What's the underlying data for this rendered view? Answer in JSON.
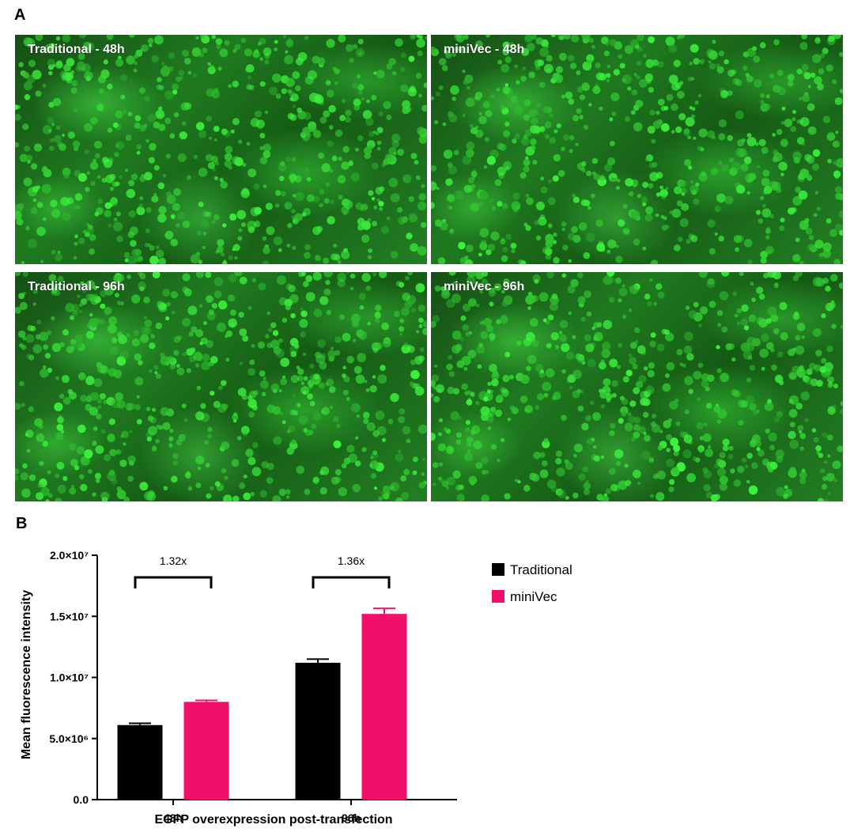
{
  "panels": {
    "a_label": "A",
    "b_label": "B"
  },
  "micrographs": [
    {
      "label": "Traditional - 48h"
    },
    {
      "label": "miniVec - 48h"
    },
    {
      "label": "Traditional - 96h"
    },
    {
      "label": "miniVec - 96h"
    }
  ],
  "colors": {
    "traditional": "#000000",
    "minivec": "#f0106a",
    "fluorescence": "#3ee23e"
  },
  "chart_data": {
    "type": "bar",
    "categories": [
      "48h",
      "96h"
    ],
    "series": [
      {
        "name": "Traditional",
        "values": [
          6100000,
          11200000
        ],
        "errors": [
          150000,
          300000
        ],
        "color": "#000000"
      },
      {
        "name": "miniVec",
        "values": [
          8000000,
          15200000
        ],
        "errors": [
          120000,
          450000
        ],
        "color": "#f0106a"
      }
    ],
    "ylim": [
      0,
      20000000
    ],
    "yticks": [
      {
        "value": 0,
        "label": "0.0"
      },
      {
        "value": 5000000,
        "label": "5.0×10⁶"
      },
      {
        "value": 10000000,
        "label": "1.0×10⁷"
      },
      {
        "value": 15000000,
        "label": "1.5×10⁷"
      },
      {
        "value": 20000000,
        "label": "2.0×10⁷"
      }
    ],
    "xlabel": "EGFP overexpression post-transfection",
    "ylabel": "Mean fluorescence intensity",
    "annotations": [
      {
        "category": "48h",
        "text": "1.32x"
      },
      {
        "category": "96h",
        "text": "1.36x"
      }
    ],
    "legend_position": "top-right",
    "grid": false
  }
}
